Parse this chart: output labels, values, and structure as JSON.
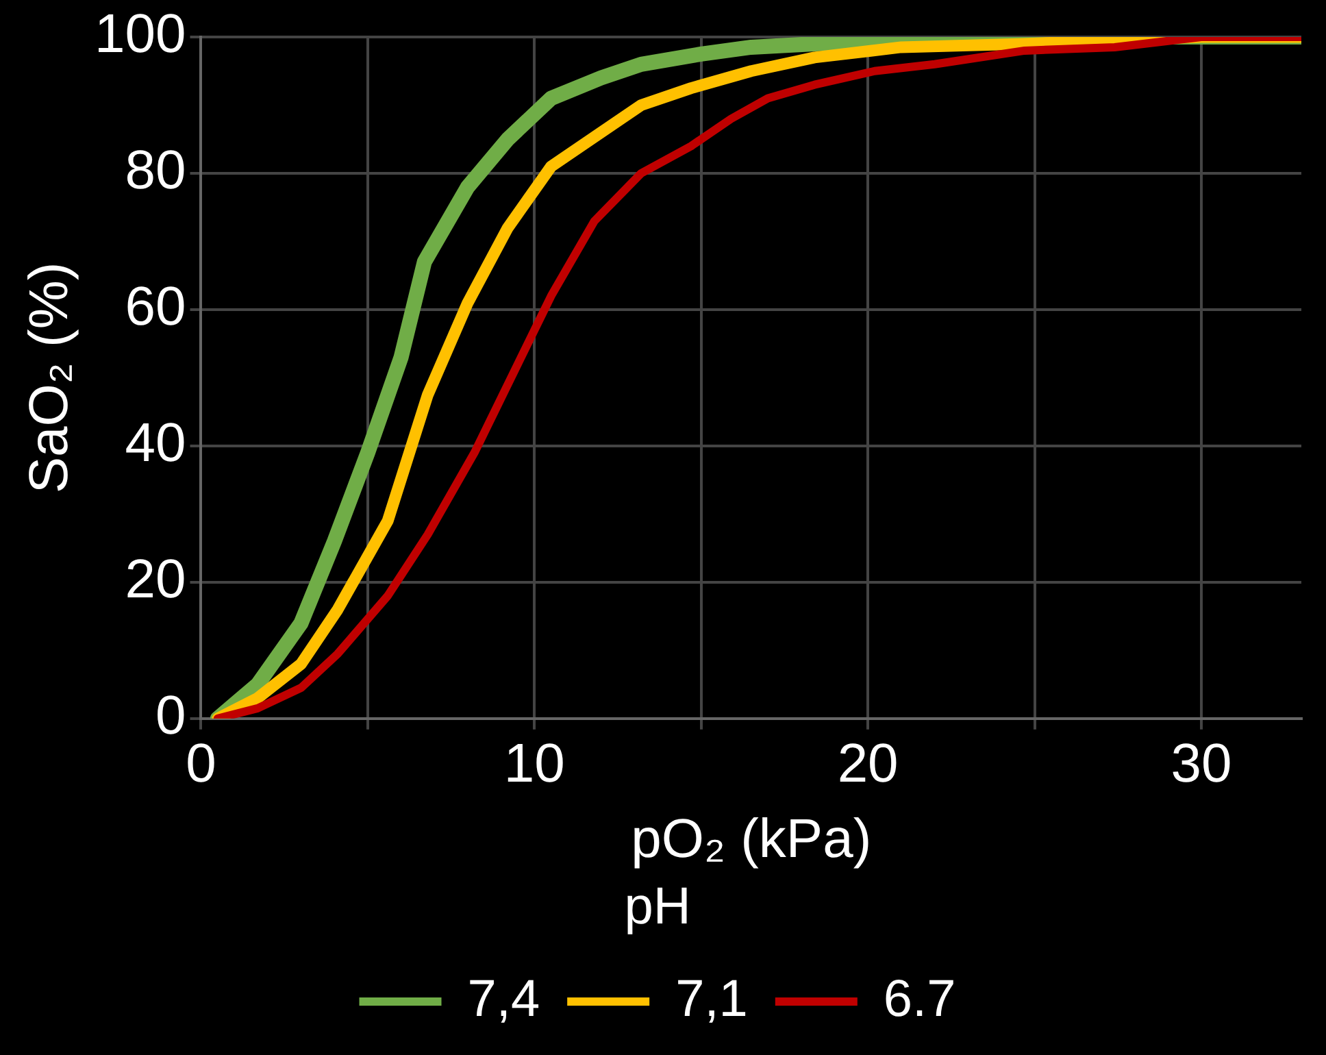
{
  "chart_data": {
    "type": "line",
    "xlabel": "pO₂ (kPa)",
    "ylabel": "SaO₂ (%)",
    "legend_title": "pH",
    "legend": "bottom",
    "grid": true,
    "marker": "none",
    "line_style": "solid",
    "xlim": [
      0,
      33
    ],
    "xticks": [
      0,
      {
        "value": 5,
        "label": null
      },
      10,
      {
        "value": 15,
        "label": null
      },
      20,
      {
        "value": 25,
        "label": null
      },
      30
    ],
    "ylim": [
      0,
      100
    ],
    "yticks": [
      0,
      20,
      40,
      60,
      80,
      100
    ],
    "series": [
      {
        "name": "7,4",
        "color": "#70ad47",
        "x": [
          0.5,
          1.7,
          3,
          4,
          5,
          6,
          6.7,
          8,
          9.2,
          10.5,
          12,
          13.2,
          15,
          16.5,
          18.4,
          21,
          24.7,
          33
        ],
        "values": [
          0,
          5,
          14,
          26,
          39,
          53,
          67,
          78,
          85,
          91,
          94,
          96,
          97.5,
          98.5,
          99,
          99.5,
          100,
          100
        ]
      },
      {
        "name": "7,1",
        "color": "#ffc000",
        "x": [
          0.5,
          1.7,
          3,
          4.1,
          5.6,
          6.8,
          8,
          9.2,
          10.5,
          12,
          13.2,
          14.7,
          16.5,
          18.4,
          21,
          24.7,
          30,
          33
        ],
        "values": [
          0,
          3,
          8,
          16,
          29,
          47.5,
          61,
          72,
          81,
          86,
          90,
          92.5,
          95,
          97,
          98.5,
          99,
          100,
          100
        ]
      },
      {
        "name": "6.7",
        "color": "#c00000",
        "x": [
          0.5,
          1.7,
          3,
          4.1,
          5.6,
          6.8,
          8.2,
          9.3,
          10.5,
          11.8,
          13.2,
          14.7,
          15.9,
          17,
          18.4,
          20.2,
          22,
          24.7,
          27.4,
          30,
          33
        ],
        "values": [
          0,
          1.5,
          4.5,
          9.5,
          18,
          27,
          39,
          50,
          62,
          73,
          80,
          84,
          88,
          91,
          93,
          95,
          96,
          98,
          98.5,
          100,
          100
        ]
      }
    ]
  }
}
